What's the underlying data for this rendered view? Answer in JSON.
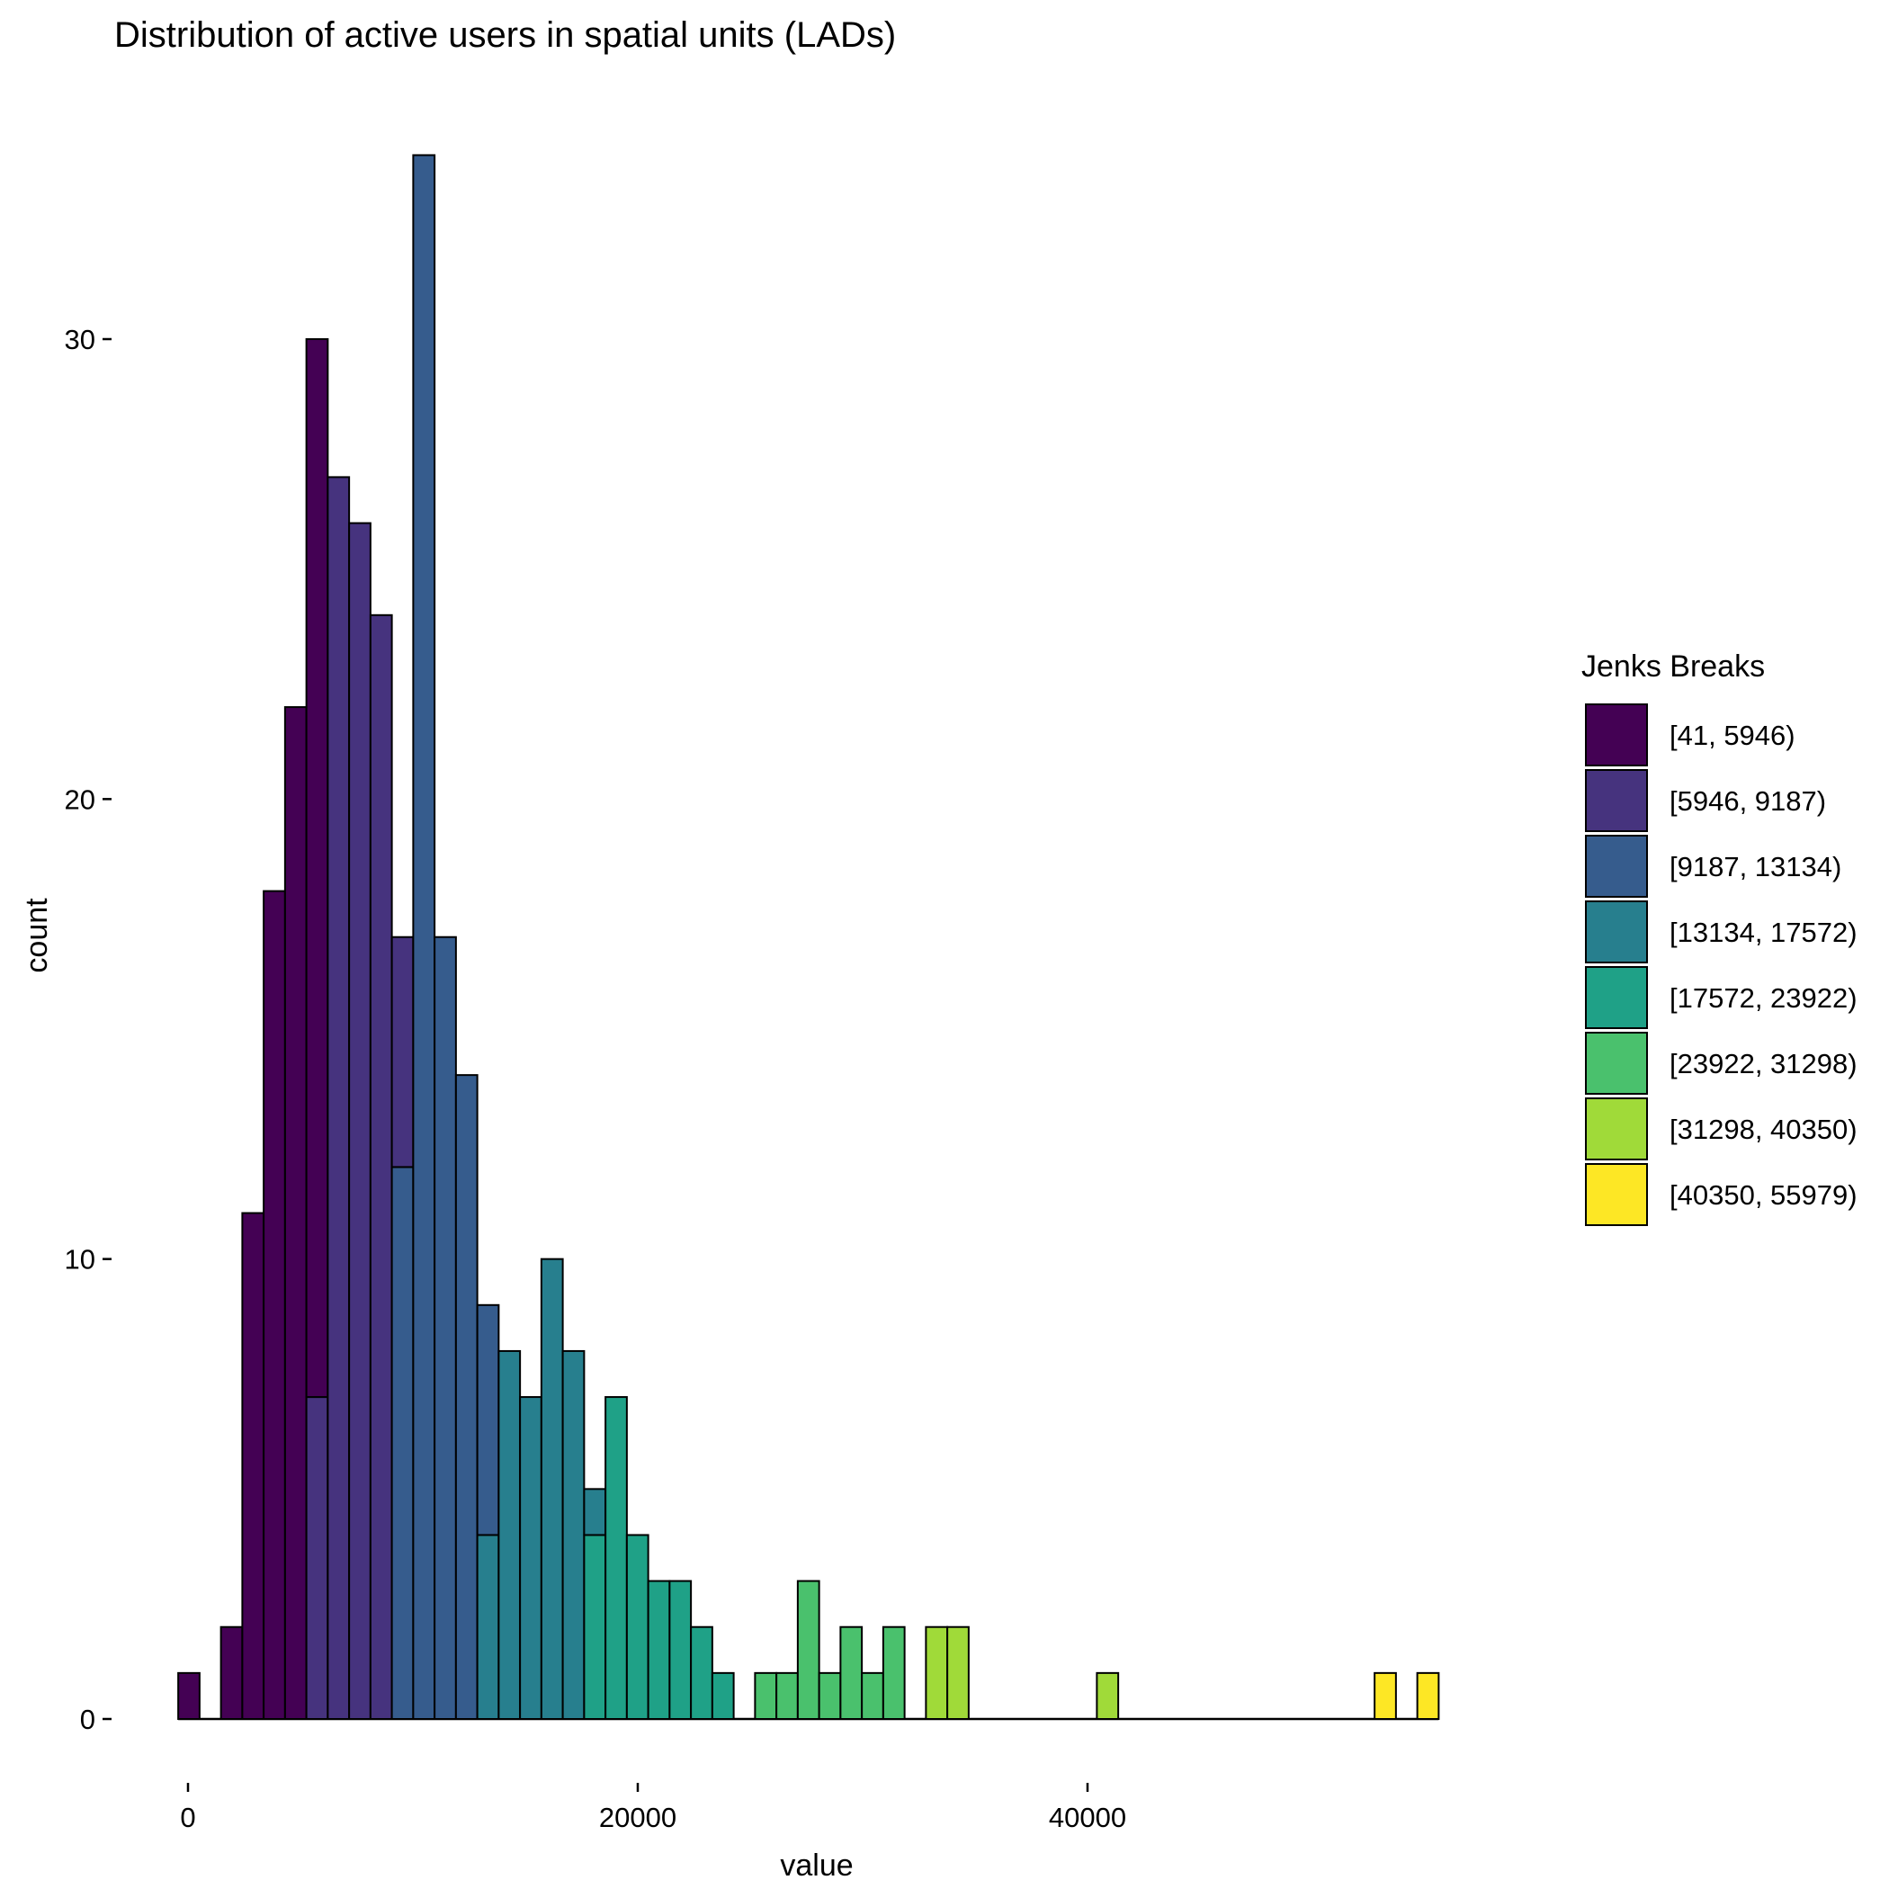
{
  "chart_data": {
    "type": "bar",
    "title": "Distribution of active users in spatial units (LADs)",
    "xlabel": "value",
    "ylabel": "count",
    "xlim": [
      -2000,
      57500
    ],
    "ylim": [
      -2,
      36.5
    ],
    "x_ticks": [
      0,
      20000,
      40000
    ],
    "x_tick_labels": [
      "0",
      "20000",
      "40000"
    ],
    "y_ticks": [
      0,
      10,
      20,
      30
    ],
    "y_tick_labels": [
      "0",
      "10",
      "20",
      "30"
    ],
    "grid": false,
    "legend_position": "right",
    "bin_width": 950,
    "bins_start": -435,
    "bins": [
      {
        "count": 1,
        "segments": [
          {
            "class": 0,
            "count": 1
          }
        ]
      },
      {
        "count": 0,
        "segments": []
      },
      {
        "count": 2,
        "segments": [
          {
            "class": 0,
            "count": 2
          }
        ]
      },
      {
        "count": 11,
        "segments": [
          {
            "class": 0,
            "count": 11
          }
        ]
      },
      {
        "count": 18,
        "segments": [
          {
            "class": 0,
            "count": 18
          }
        ]
      },
      {
        "count": 22,
        "segments": [
          {
            "class": 0,
            "count": 22
          }
        ]
      },
      {
        "count": 30,
        "segments": [
          {
            "class": 1,
            "count": 7
          },
          {
            "class": 0,
            "count": 23
          }
        ]
      },
      {
        "count": 27,
        "segments": [
          {
            "class": 1,
            "count": 27
          }
        ]
      },
      {
        "count": 26,
        "segments": [
          {
            "class": 1,
            "count": 26
          }
        ]
      },
      {
        "count": 24,
        "segments": [
          {
            "class": 1,
            "count": 24
          }
        ]
      },
      {
        "count": 17,
        "segments": [
          {
            "class": 2,
            "count": 12
          },
          {
            "class": 1,
            "count": 5
          }
        ]
      },
      {
        "count": 34,
        "segments": [
          {
            "class": 2,
            "count": 34
          }
        ]
      },
      {
        "count": 17,
        "segments": [
          {
            "class": 2,
            "count": 17
          }
        ]
      },
      {
        "count": 14,
        "segments": [
          {
            "class": 2,
            "count": 14
          }
        ]
      },
      {
        "count": 9,
        "segments": [
          {
            "class": 3,
            "count": 4
          },
          {
            "class": 2,
            "count": 5
          }
        ]
      },
      {
        "count": 8,
        "segments": [
          {
            "class": 3,
            "count": 8
          }
        ]
      },
      {
        "count": 7,
        "segments": [
          {
            "class": 3,
            "count": 7
          }
        ]
      },
      {
        "count": 10,
        "segments": [
          {
            "class": 3,
            "count": 10
          }
        ]
      },
      {
        "count": 8,
        "segments": [
          {
            "class": 3,
            "count": 8
          }
        ]
      },
      {
        "count": 5,
        "segments": [
          {
            "class": 4,
            "count": 4
          },
          {
            "class": 3,
            "count": 1
          }
        ]
      },
      {
        "count": 7,
        "segments": [
          {
            "class": 4,
            "count": 7
          }
        ]
      },
      {
        "count": 4,
        "segments": [
          {
            "class": 4,
            "count": 4
          }
        ]
      },
      {
        "count": 3,
        "segments": [
          {
            "class": 4,
            "count": 3
          }
        ]
      },
      {
        "count": 3,
        "segments": [
          {
            "class": 4,
            "count": 3
          }
        ]
      },
      {
        "count": 2,
        "segments": [
          {
            "class": 4,
            "count": 2
          }
        ]
      },
      {
        "count": 1,
        "segments": [
          {
            "class": 4,
            "count": 1
          }
        ]
      },
      {
        "count": 0,
        "segments": []
      },
      {
        "count": 1,
        "segments": [
          {
            "class": 5,
            "count": 1
          }
        ]
      },
      {
        "count": 1,
        "segments": [
          {
            "class": 5,
            "count": 1
          }
        ]
      },
      {
        "count": 3,
        "segments": [
          {
            "class": 5,
            "count": 3
          }
        ]
      },
      {
        "count": 1,
        "segments": [
          {
            "class": 5,
            "count": 1
          }
        ]
      },
      {
        "count": 2,
        "segments": [
          {
            "class": 5,
            "count": 2
          }
        ]
      },
      {
        "count": 1,
        "segments": [
          {
            "class": 5,
            "count": 1
          }
        ]
      },
      {
        "count": 2,
        "segments": [
          {
            "class": 5,
            "count": 2
          }
        ]
      },
      {
        "count": 0,
        "segments": []
      },
      {
        "count": 2,
        "segments": [
          {
            "class": 6,
            "count": 2
          }
        ]
      },
      {
        "count": 2,
        "segments": [
          {
            "class": 6,
            "count": 2
          }
        ]
      },
      {
        "count": 0,
        "segments": []
      },
      {
        "count": 0,
        "segments": []
      },
      {
        "count": 0,
        "segments": []
      },
      {
        "count": 0,
        "segments": []
      },
      {
        "count": 0,
        "segments": []
      },
      {
        "count": 0,
        "segments": []
      },
      {
        "count": 1,
        "segments": [
          {
            "class": 6,
            "count": 1
          }
        ]
      },
      {
        "count": 0,
        "segments": []
      },
      {
        "count": 0,
        "segments": []
      },
      {
        "count": 0,
        "segments": []
      },
      {
        "count": 0,
        "segments": []
      },
      {
        "count": 0,
        "segments": []
      },
      {
        "count": 0,
        "segments": []
      },
      {
        "count": 0,
        "segments": []
      },
      {
        "count": 0,
        "segments": []
      },
      {
        "count": 0,
        "segments": []
      },
      {
        "count": 0,
        "segments": []
      },
      {
        "count": 0,
        "segments": []
      },
      {
        "count": 0,
        "segments": []
      },
      {
        "count": 1,
        "segments": [
          {
            "class": 7,
            "count": 1
          }
        ]
      },
      {
        "count": 0,
        "segments": []
      },
      {
        "count": 1,
        "segments": [
          {
            "class": 7,
            "count": 1
          }
        ]
      }
    ],
    "legend": {
      "title": "Jenks Breaks",
      "items": [
        {
          "label": "[41, 5946)",
          "color": "#440154"
        },
        {
          "label": "[5946, 9187)",
          "color": "#46337E"
        },
        {
          "label": "[9187, 13134)",
          "color": "#365C8D"
        },
        {
          "label": "[13134, 17572)",
          "color": "#277F8E"
        },
        {
          "label": "[17572, 23922)",
          "color": "#1FA187"
        },
        {
          "label": "[23922, 31298)",
          "color": "#4AC16D"
        },
        {
          "label": "[31298, 40350)",
          "color": "#A0DA39"
        },
        {
          "label": "[40350, 55979)",
          "color": "#FDE725"
        }
      ]
    }
  }
}
